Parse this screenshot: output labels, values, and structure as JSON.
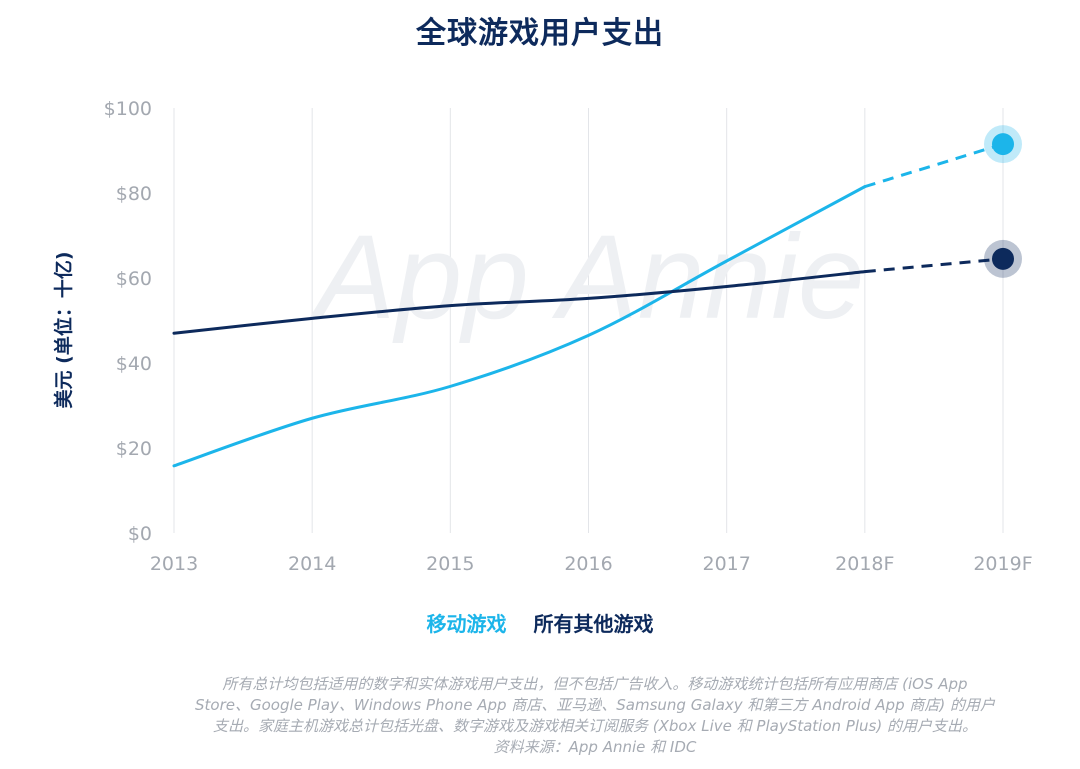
{
  "chart_data": {
    "type": "line",
    "title": "全球游戏用户支出",
    "ylabel": "美元 (单位：十亿)",
    "xlabel": "",
    "categories": [
      "2013",
      "2014",
      "2015",
      "2016",
      "2017",
      "2018F",
      "2019F"
    ],
    "y_ticks": [
      "$0",
      "$20",
      "$40",
      "$60",
      "$80",
      "$100"
    ],
    "ylim": [
      0,
      100
    ],
    "grid": "vertical",
    "forecast_start": "2018F",
    "watermark": "App Annie",
    "series": [
      {
        "name": "移动游戏",
        "values": [
          15.8,
          27.0,
          34.5,
          46.5,
          64.0,
          81.5,
          91.5
        ],
        "color": "#1cb5ea"
      },
      {
        "name": "所有其他游戏",
        "values": [
          47.0,
          50.5,
          53.5,
          55.2,
          58.0,
          61.5,
          64.5
        ],
        "color": "#0d2a5c"
      }
    ],
    "legend_position": "bottom-center"
  },
  "footnote": [
    "所有总计均包括适用的数字和实体游戏用户支出，但不包括广告收入。移动游戏统计包括所有应用商店 (iOS App",
    "Store、Google Play、Windows Phone App 商店、亚马逊、Samsung Galaxy 和第三方 Android App 商店) 的用户",
    "支出。家庭主机游戏总计包括光盘、数字游戏及游戏相关订阅服务 (Xbox Live 和 PlayStation Plus) 的用户支出。",
    "资料来源：App Annie 和 IDC"
  ]
}
